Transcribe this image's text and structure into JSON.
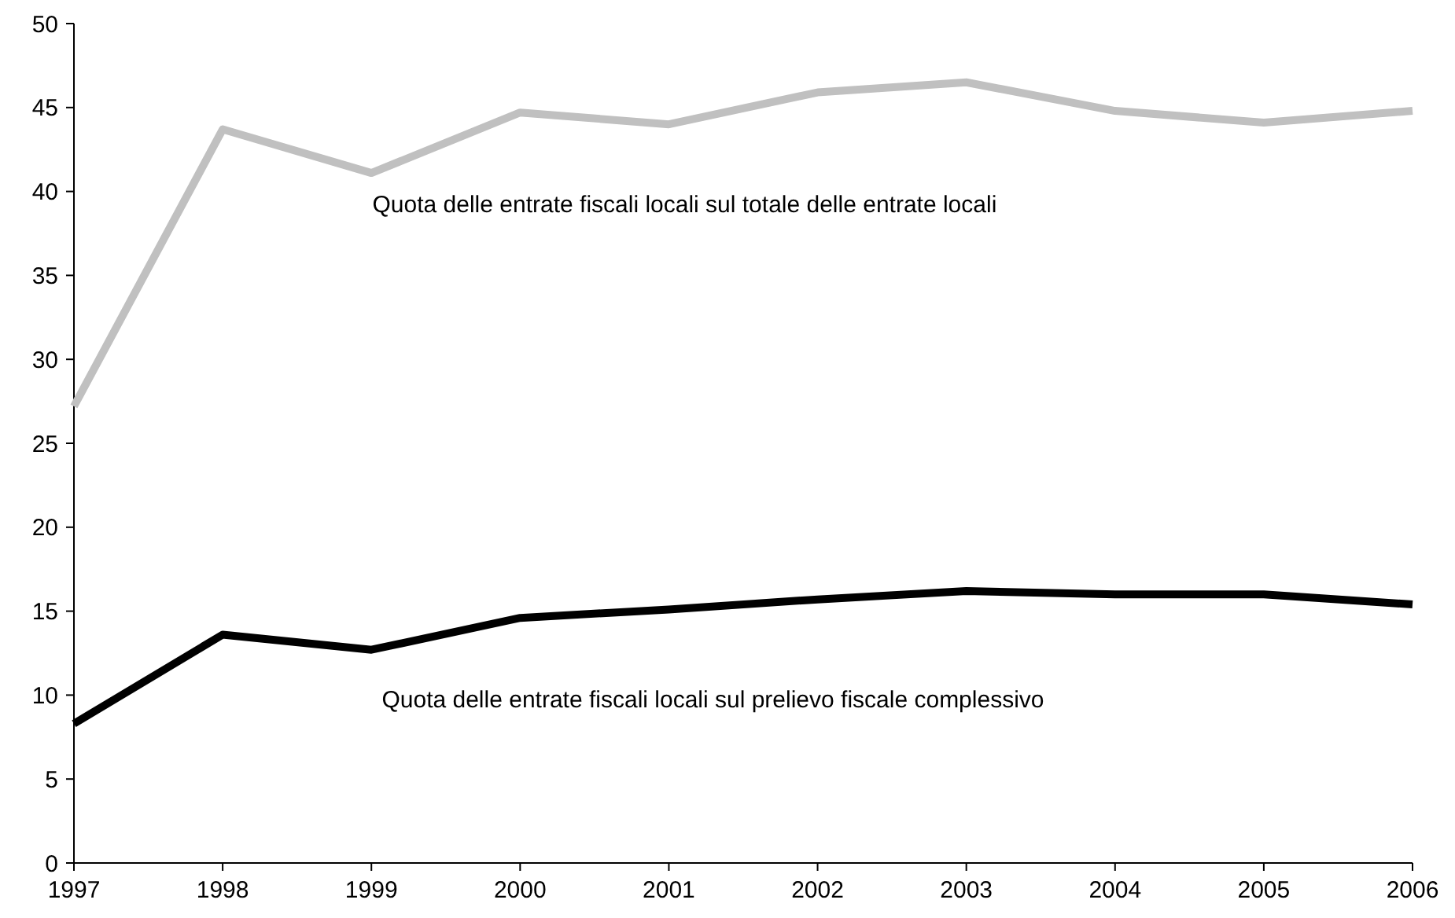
{
  "chart_data": {
    "type": "line",
    "x": [
      1997,
      1998,
      1999,
      2000,
      2001,
      2002,
      2003,
      2004,
      2005,
      2006
    ],
    "series": [
      {
        "name": "Quota delle entrate fiscali locali sul totale delle entrate locali",
        "color": "#c0c0c0",
        "values": [
          27.2,
          43.7,
          41.1,
          44.7,
          44.0,
          45.9,
          46.5,
          44.8,
          44.1,
          44.8
        ]
      },
      {
        "name": "Quota delle entrate fiscali locali sul prelievo fiscale complessivo",
        "color": "#000000",
        "values": [
          8.3,
          13.6,
          12.7,
          14.6,
          15.1,
          15.7,
          16.2,
          16.0,
          16.0,
          15.4
        ]
      }
    ],
    "xlim": [
      1997,
      2006
    ],
    "xticks": [
      1997,
      1998,
      1999,
      2000,
      2001,
      2002,
      2003,
      2004,
      2005,
      2006
    ],
    "ylim": [
      0,
      50
    ],
    "yticks": [
      0,
      5,
      10,
      15,
      20,
      25,
      30,
      35,
      40,
      45,
      50
    ],
    "grid": false,
    "marker": "none",
    "line_style": "solid"
  }
}
